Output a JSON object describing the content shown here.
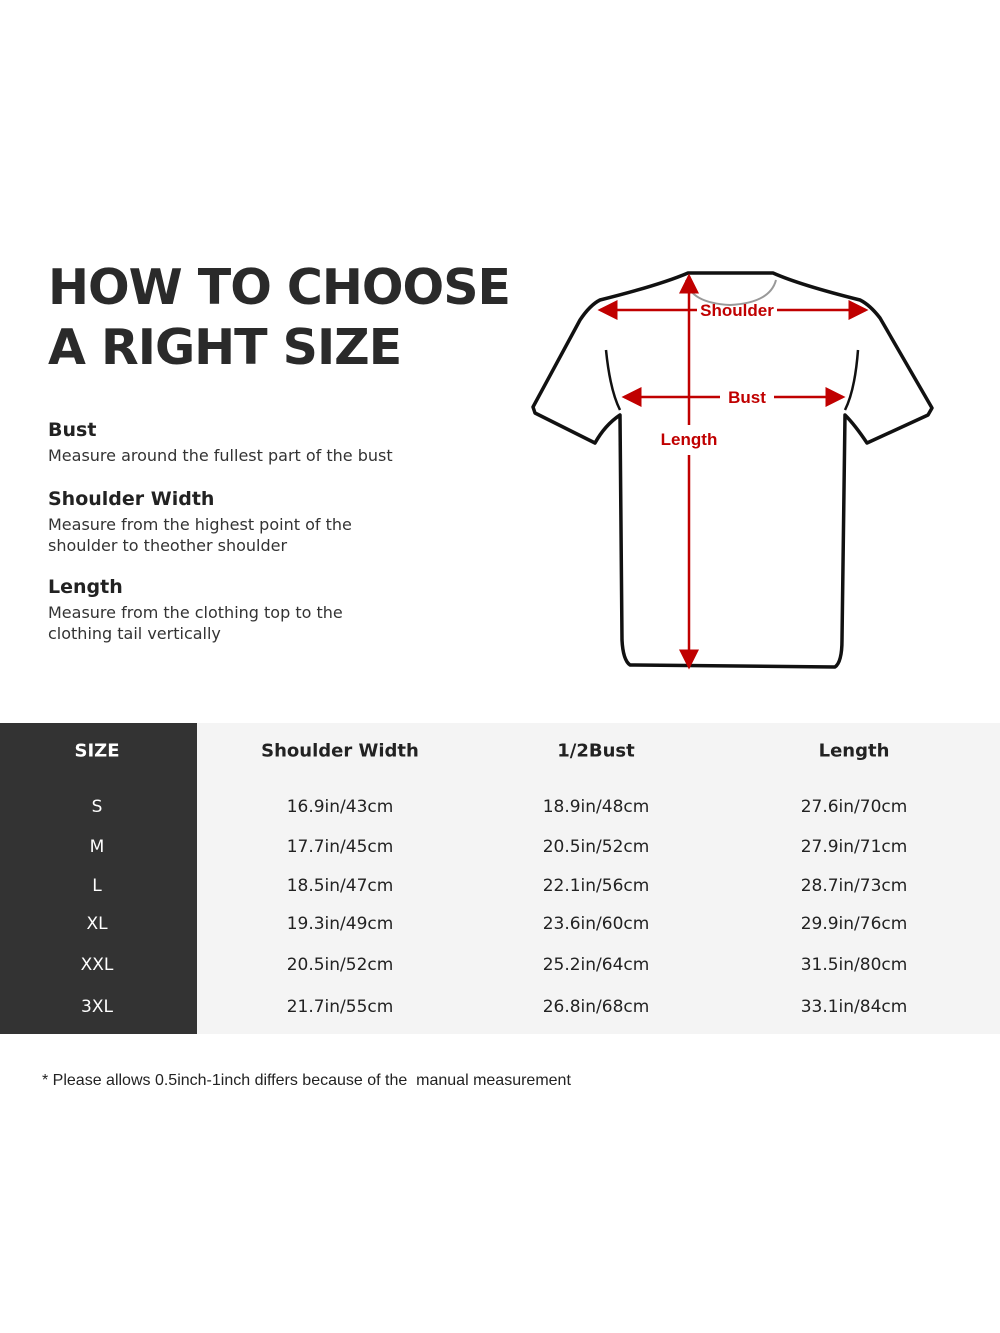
{
  "title": {
    "line1": "HOW TO CHOOSE",
    "line2": "A RIGHT SIZE"
  },
  "definitions": [
    {
      "term": "Bust",
      "description": "Measure around the fullest part of the bust"
    },
    {
      "term": "Shoulder Width",
      "description": "Measure from the highest point of the shoulder to theother shoulder"
    },
    {
      "term": "Length",
      "description": "Measure from the clothing top to the clothing tail vertically"
    }
  ],
  "diagram": {
    "shoulder": "Shoulder",
    "bust": "Bust",
    "length": "Length",
    "arrow_color": "#c00000"
  },
  "table": {
    "headers": [
      "SIZE",
      "Shoulder Width",
      "1/2Bust",
      "Length"
    ],
    "rows": [
      [
        "S",
        "16.9in/43cm",
        "18.9in/48cm",
        "27.6in/70cm"
      ],
      [
        "M",
        "17.7in/45cm",
        "20.5in/52cm",
        "27.9in/71cm"
      ],
      [
        "L",
        "18.5in/47cm",
        "22.1in/56cm",
        "28.7in/73cm"
      ],
      [
        "XL",
        "19.3in/49cm",
        "23.6in/60cm",
        "29.9in/76cm"
      ],
      [
        "XXL",
        "20.5in/52cm",
        "25.2in/64cm",
        "31.5in/80cm"
      ],
      [
        "3XL",
        "21.7in/55cm",
        "26.8in/68cm",
        "33.1in/84cm"
      ]
    ]
  },
  "note": "* Please allows 0.5inch-1inch differs because of the  manual measurement"
}
